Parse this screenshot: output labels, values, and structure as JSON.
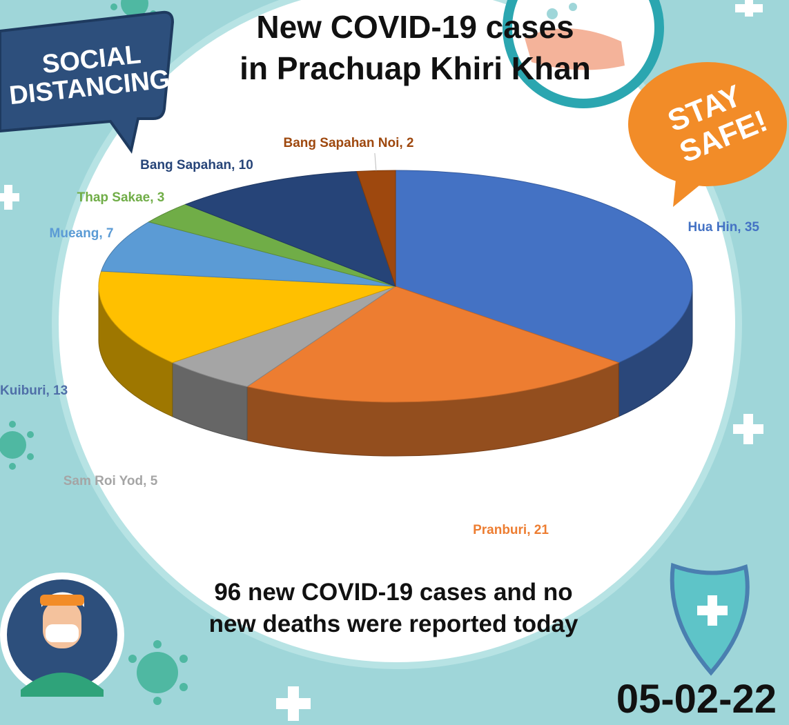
{
  "header": {
    "title_line1": "New COVID-19 cases",
    "title_line2": "in Prachuap Khiri Khan"
  },
  "badges": {
    "social_line1": "SOCIAL",
    "social_line2": "DISTANCING",
    "stay_line1": "STAY",
    "stay_line2": "SAFE!"
  },
  "summary": {
    "line1": "96 new COVID-19 cases and no",
    "line2": "new deaths were reported today"
  },
  "date": "05-02-22",
  "colors": {
    "background": "#9fd6d9",
    "circle": "#ffffff",
    "social_badge": "#2d4f7c",
    "stay_badge": "#f28c28"
  },
  "chart_data": {
    "type": "pie",
    "title": "",
    "legend": "none",
    "slices": [
      {
        "name": "Hua Hin",
        "value": 35,
        "label": "Hua Hin, 35",
        "color": "#4472c4",
        "label_color": "#4472c4"
      },
      {
        "name": "Pranburi",
        "value": 21,
        "label": "Pranburi, 21",
        "color": "#ed7d31",
        "label_color": "#ed7d31"
      },
      {
        "name": "Sam Roi Yod",
        "value": 5,
        "label": "Sam Roi Yod, 5",
        "color": "#a5a5a5",
        "label_color": "#a5a5a5"
      },
      {
        "name": "Kuiburi",
        "value": 13,
        "label": "Kuiburi, 13",
        "color": "#ffc000",
        "label_color": "#4f6fa8"
      },
      {
        "name": "Mueang",
        "value": 7,
        "label": "Mueang, 7",
        "color": "#5b9bd5",
        "label_color": "#5b9bd5"
      },
      {
        "name": "Thap Sakae",
        "value": 3,
        "label": "Thap Sakae, 3",
        "color": "#70ad47",
        "label_color": "#70ad47"
      },
      {
        "name": "Bang Sapahan",
        "value": 10,
        "label": "Bang Sapahan, 10",
        "color": "#264478",
        "label_color": "#264478"
      },
      {
        "name": "Bang Sapahan Noi",
        "value": 2,
        "label": "Bang Sapahan Noi, 2",
        "color": "#9e480e",
        "label_color": "#9e480e"
      }
    ]
  }
}
